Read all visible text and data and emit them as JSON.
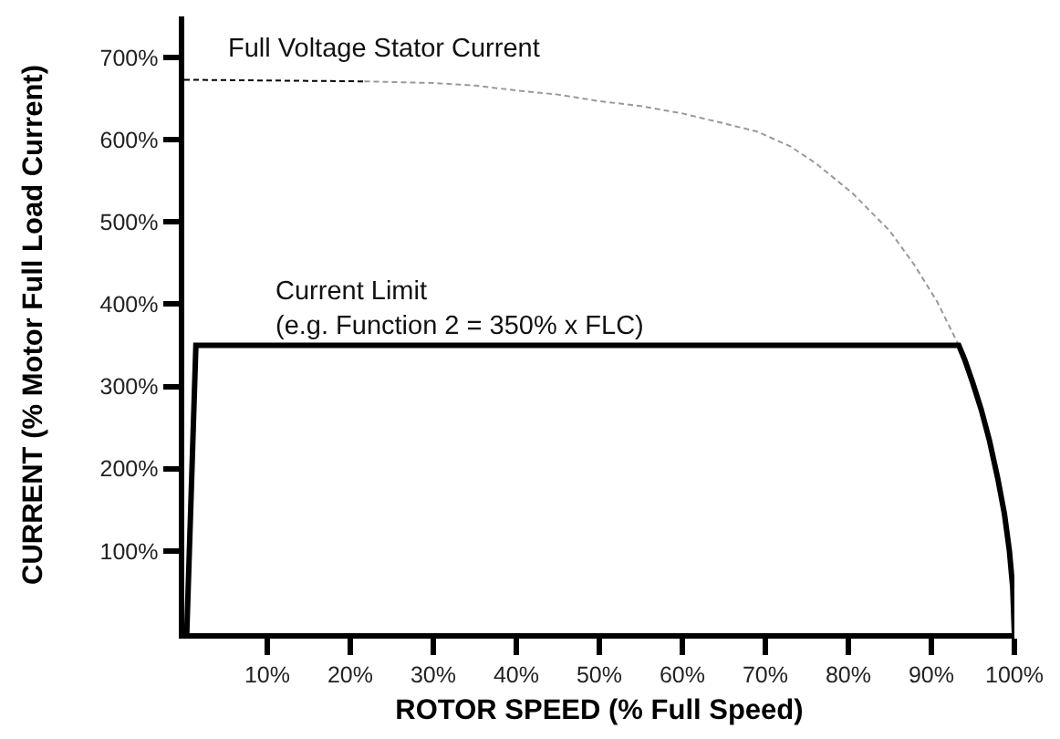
{
  "chart_data": {
    "type": "line",
    "xlabel": "ROTOR SPEED (% Full Speed)",
    "ylabel": "CURRENT (% Motor Full Load Current)",
    "xlim": [
      0,
      100
    ],
    "ylim": [
      0,
      750
    ],
    "xticks": [
      {
        "value": 10,
        "label": "10%"
      },
      {
        "value": 20,
        "label": "20%"
      },
      {
        "value": 30,
        "label": "30%"
      },
      {
        "value": 40,
        "label": "40%"
      },
      {
        "value": 50,
        "label": "50%"
      },
      {
        "value": 60,
        "label": "60%"
      },
      {
        "value": 70,
        "label": "70%"
      },
      {
        "value": 80,
        "label": "80%"
      },
      {
        "value": 90,
        "label": "90%"
      },
      {
        "value": 100,
        "label": "100%"
      }
    ],
    "yticks": [
      {
        "value": 100,
        "label": "100%"
      },
      {
        "value": 200,
        "label": "200%"
      },
      {
        "value": 300,
        "label": "300%"
      },
      {
        "value": 400,
        "label": "400%"
      },
      {
        "value": 500,
        "label": "500%"
      },
      {
        "value": 600,
        "label": "600%"
      },
      {
        "value": 700,
        "label": "700%"
      }
    ],
    "marker": "none",
    "series": [
      {
        "color": "#000000",
        "line_style": "dashed",
        "x": [
          0,
          21.7
        ],
        "values": [
          673,
          671
        ]
      },
      {
        "color": "#999999",
        "line_style": "dashed",
        "x": [
          21.7,
          30,
          35,
          40,
          45,
          50,
          55,
          60,
          65,
          69,
          73,
          76,
          80.5,
          85,
          88,
          90.7,
          93.3
        ],
        "values": [
          671,
          669,
          666,
          660,
          655,
          647,
          641,
          632,
          620,
          610,
          592,
          572,
          535,
          489,
          447,
          403,
          350
        ]
      },
      {
        "color": "#000000",
        "line_style": "solid",
        "x": [
          0.3,
          1.4,
          93.3,
          94,
          95,
          96,
          97,
          98,
          98.8,
          99.4,
          99.8,
          100
        ],
        "values": [
          0,
          350,
          350,
          333,
          304,
          272,
          234,
          188,
          145,
          100,
          55,
          0
        ]
      }
    ],
    "annotations": [
      "Full Voltage Stator Current",
      "Current Limit\n(e.g. Function 2 = 350% x FLC)"
    ]
  }
}
